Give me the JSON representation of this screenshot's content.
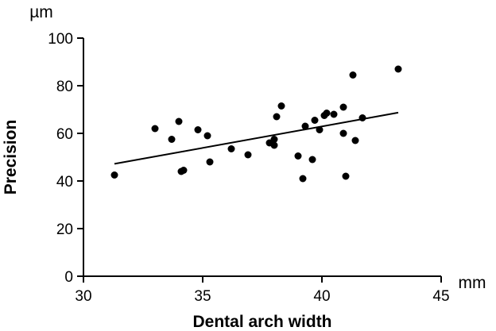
{
  "chart_data": {
    "type": "scatter",
    "title": "",
    "xlabel": "Dental arch width",
    "ylabel": "Precision",
    "x_unit": "mm",
    "y_unit": "µm",
    "xlim": [
      30,
      45
    ],
    "ylim": [
      0,
      100
    ],
    "x_ticks": [
      30,
      35,
      40,
      45
    ],
    "y_ticks": [
      0,
      20,
      40,
      60,
      80,
      100
    ],
    "grid": false,
    "legend": "none",
    "point_color": "#000000",
    "series": [
      {
        "points": [
          [
            31.3,
            42.5
          ],
          [
            33.0,
            62.0
          ],
          [
            33.7,
            57.5
          ],
          [
            34.0,
            65.0
          ],
          [
            34.1,
            44.0
          ],
          [
            34.2,
            44.5
          ],
          [
            34.8,
            61.5
          ],
          [
            35.2,
            59.0
          ],
          [
            35.3,
            48.0
          ],
          [
            36.2,
            53.5
          ],
          [
            36.9,
            51.0
          ],
          [
            37.8,
            56.0
          ],
          [
            38.0,
            57.5
          ],
          [
            38.0,
            55.0
          ],
          [
            38.1,
            67.0
          ],
          [
            38.3,
            71.5
          ],
          [
            39.0,
            50.5
          ],
          [
            39.2,
            41.0
          ],
          [
            39.3,
            63.0
          ],
          [
            39.6,
            49.0
          ],
          [
            39.7,
            65.5
          ],
          [
            39.9,
            61.5
          ],
          [
            40.1,
            67.5
          ],
          [
            40.2,
            68.5
          ],
          [
            40.5,
            68.0
          ],
          [
            40.9,
            71.0
          ],
          [
            40.9,
            60.0
          ],
          [
            41.0,
            42.0
          ],
          [
            41.3,
            84.5
          ],
          [
            41.4,
            57.0
          ],
          [
            41.7,
            66.5
          ],
          [
            43.2,
            87.0
          ]
        ]
      }
    ],
    "trendline": {
      "x": [
        31.3,
        43.2
      ],
      "y": [
        47.2,
        68.7
      ]
    }
  }
}
